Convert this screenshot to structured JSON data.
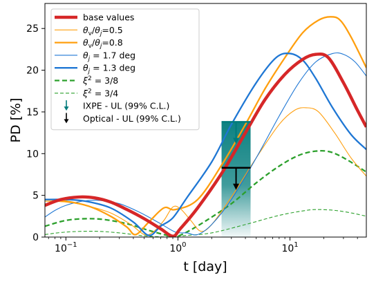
{
  "chart_data": {
    "type": "line",
    "xlabel": "t [day]",
    "ylabel": "PD [%]",
    "xscale": "log",
    "xlim": [
      0.065,
      48
    ],
    "ylim": [
      0,
      28
    ],
    "x_ticks": [
      {
        "value": 0.1,
        "base": "10",
        "exp": "−1"
      },
      {
        "value": 1,
        "base": "10",
        "exp": "0"
      },
      {
        "value": 10,
        "base": "10",
        "exp": "1"
      }
    ],
    "y_ticks": [
      0,
      5,
      10,
      15,
      20,
      25
    ],
    "legend": {
      "placement": "upper-left",
      "entries": [
        {
          "key": "base",
          "label": "base values",
          "math": false,
          "color": "#d62728",
          "width": 4.5,
          "dash": ""
        },
        {
          "key": "r05",
          "label": "θv/θj=0.5",
          "math": true,
          "color": "#ff9f0e",
          "width": 1.1,
          "dash": ""
        },
        {
          "key": "r08",
          "label": "θv/θj=0.8",
          "math": true,
          "color": "#ff9f0e",
          "width": 2.3,
          "dash": ""
        },
        {
          "key": "tj17",
          "label": "θj = 1.7 deg",
          "math": true,
          "color": "#1f77d4",
          "width": 1.1,
          "dash": ""
        },
        {
          "key": "tj13",
          "label": "θj = 1.3 deg",
          "math": true,
          "color": "#1f77d4",
          "width": 2.3,
          "dash": ""
        },
        {
          "key": "xi38",
          "label": "ξ² = 3/8",
          "math": true,
          "color": "#2ca02c",
          "width": 2.3,
          "dash": "7,4"
        },
        {
          "key": "xi34",
          "label": "ξ² = 3/4",
          "math": true,
          "color": "#2ca02c",
          "width": 1.1,
          "dash": "5,3"
        },
        {
          "key": "ixpe",
          "label": "IXPE - UL (99% C.L.)",
          "math": false,
          "color": "#007b7b",
          "arrow": true
        },
        {
          "key": "optical",
          "label": "Optical - UL (99% C.L.)",
          "math": false,
          "color": "#000000",
          "arrow": true
        }
      ]
    },
    "upper_limits": [
      {
        "name": "IXPE - UL (99% C.L.)",
        "t_range": [
          2.45,
          4.45
        ],
        "value": 13.8,
        "color": "#007b7b",
        "band_color": "#007b7b"
      },
      {
        "name": "Optical - UL (99% C.L.)",
        "t_range": [
          2.45,
          4.45
        ],
        "value": 8.3,
        "color": "#000000"
      }
    ],
    "series": [
      {
        "key": "base",
        "label": "base values",
        "color": "#d62728",
        "width": 4.5,
        "dash": "",
        "points": [
          [
            0.065,
            3.8
          ],
          [
            0.09,
            4.5
          ],
          [
            0.13,
            4.8
          ],
          [
            0.18,
            4.7
          ],
          [
            0.25,
            4.2
          ],
          [
            0.35,
            3.3
          ],
          [
            0.5,
            2.2
          ],
          [
            0.7,
            1.0
          ],
          [
            0.9,
            0.1
          ],
          [
            1.05,
            1.0
          ],
          [
            1.5,
            3.5
          ],
          [
            2.5,
            7.8
          ],
          [
            4,
            12.5
          ],
          [
            6,
            16.5
          ],
          [
            9,
            19.5
          ],
          [
            13,
            21.3
          ],
          [
            17,
            21.9
          ],
          [
            22,
            21.5
          ],
          [
            30,
            18.5
          ],
          [
            40,
            15.2
          ],
          [
            48,
            13.2
          ]
        ]
      },
      {
        "key": "r05",
        "label": "θv/θj=0.5",
        "color": "#ff9f0e",
        "width": 1.1,
        "dash": "",
        "points": [
          [
            0.065,
            4.3
          ],
          [
            0.1,
            4.2
          ],
          [
            0.15,
            3.8
          ],
          [
            0.25,
            2.9
          ],
          [
            0.38,
            1.5
          ],
          [
            0.5,
            0.3
          ],
          [
            0.6,
            0.6
          ],
          [
            0.75,
            2.0
          ],
          [
            0.9,
            3.6
          ],
          [
            1.05,
            3.4
          ],
          [
            1.3,
            2.0
          ],
          [
            1.6,
            0.7
          ],
          [
            2.0,
            1.5
          ],
          [
            3,
            4.8
          ],
          [
            5,
            9.5
          ],
          [
            8,
            13.5
          ],
          [
            11,
            15.2
          ],
          [
            14,
            15.5
          ],
          [
            18,
            15.0
          ],
          [
            25,
            12.5
          ],
          [
            35,
            9.5
          ],
          [
            48,
            7.3
          ]
        ]
      },
      {
        "key": "r08",
        "label": "θv/θj=0.8",
        "color": "#ff9f0e",
        "width": 2.3,
        "dash": "",
        "points": [
          [
            0.065,
            4.5
          ],
          [
            0.1,
            4.3
          ],
          [
            0.16,
            3.7
          ],
          [
            0.25,
            2.5
          ],
          [
            0.35,
            1.2
          ],
          [
            0.42,
            0.3
          ],
          [
            0.55,
            1.8
          ],
          [
            0.75,
            3.5
          ],
          [
            0.95,
            3.3
          ],
          [
            1.5,
            4.5
          ],
          [
            2.5,
            8.8
          ],
          [
            4,
            13.5
          ],
          [
            6,
            17.8
          ],
          [
            9,
            21.5
          ],
          [
            13,
            24.5
          ],
          [
            18,
            26.0
          ],
          [
            23,
            26.4
          ],
          [
            28,
            26.0
          ],
          [
            35,
            24.0
          ],
          [
            48,
            20.3
          ]
        ]
      },
      {
        "key": "tj17",
        "label": "θj = 1.7 deg",
        "color": "#1f77d4",
        "width": 1.1,
        "dash": "",
        "points": [
          [
            0.065,
            2.4
          ],
          [
            0.08,
            3.2
          ],
          [
            0.1,
            3.8
          ],
          [
            0.14,
            4.3
          ],
          [
            0.2,
            4.4
          ],
          [
            0.3,
            4.0
          ],
          [
            0.45,
            3.0
          ],
          [
            0.7,
            1.6
          ],
          [
            0.95,
            0.6
          ],
          [
            1.2,
            0.5
          ],
          [
            1.5,
            0.3
          ],
          [
            2.0,
            1.5
          ],
          [
            3,
            4.5
          ],
          [
            5,
            9.5
          ],
          [
            8,
            14.5
          ],
          [
            12,
            18.5
          ],
          [
            17,
            21.0
          ],
          [
            24,
            22.0
          ],
          [
            30,
            21.9
          ],
          [
            38,
            21.0
          ],
          [
            48,
            19.3
          ]
        ]
      },
      {
        "key": "tj13",
        "label": "θj = 1.3 deg",
        "color": "#1f77d4",
        "width": 2.3,
        "dash": "",
        "points": [
          [
            0.065,
            4.5
          ],
          [
            0.1,
            4.5
          ],
          [
            0.15,
            4.3
          ],
          [
            0.25,
            3.5
          ],
          [
            0.4,
            1.8
          ],
          [
            0.55,
            0.2
          ],
          [
            0.7,
            1.3
          ],
          [
            0.9,
            2.3
          ],
          [
            1.2,
            4.7
          ],
          [
            2,
            9.0
          ],
          [
            3,
            13.5
          ],
          [
            5,
            18.5
          ],
          [
            7.5,
            21.5
          ],
          [
            10,
            22.0
          ],
          [
            13,
            21.2
          ],
          [
            17,
            19.0
          ],
          [
            24,
            15.5
          ],
          [
            35,
            12.3
          ],
          [
            48,
            10.5
          ]
        ]
      },
      {
        "key": "xi38",
        "label": "ξ² = 3/8",
        "color": "#2ca02c",
        "width": 2.3,
        "dash": "7,4",
        "points": [
          [
            0.065,
            1.3
          ],
          [
            0.1,
            2.0
          ],
          [
            0.15,
            2.2
          ],
          [
            0.22,
            2.1
          ],
          [
            0.35,
            1.6
          ],
          [
            0.55,
            0.8
          ],
          [
            0.8,
            0.2
          ],
          [
            0.95,
            0.05
          ],
          [
            1.2,
            0.6
          ],
          [
            1.8,
            2.0
          ],
          [
            3,
            4.0
          ],
          [
            5,
            6.5
          ],
          [
            8,
            8.5
          ],
          [
            12,
            9.8
          ],
          [
            17,
            10.3
          ],
          [
            23,
            10.2
          ],
          [
            32,
            9.3
          ],
          [
            48,
            7.8
          ]
        ]
      },
      {
        "key": "xi34",
        "label": "ξ² = 3/4",
        "color": "#2ca02c",
        "width": 1.1,
        "dash": "5,3",
        "points": [
          [
            0.065,
            0.3
          ],
          [
            0.1,
            0.6
          ],
          [
            0.18,
            0.7
          ],
          [
            0.3,
            0.5
          ],
          [
            0.5,
            0.15
          ],
          [
            0.8,
            0.02
          ],
          [
            1.2,
            0.2
          ],
          [
            2,
            0.5
          ],
          [
            4,
            1.5
          ],
          [
            8,
            2.6
          ],
          [
            14,
            3.2
          ],
          [
            18,
            3.3
          ],
          [
            25,
            3.2
          ],
          [
            35,
            2.9
          ],
          [
            48,
            2.5
          ]
        ]
      }
    ]
  }
}
